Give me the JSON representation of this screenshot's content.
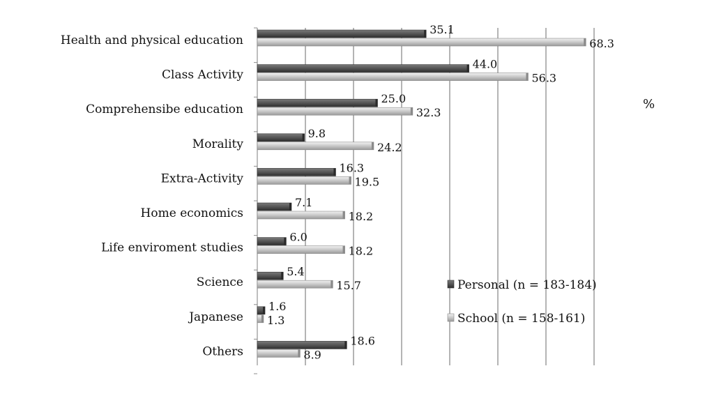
{
  "chart_data": {
    "type": "bar",
    "orientation": "horizontal",
    "unit_label": "%",
    "xlim": [
      0,
      70
    ],
    "grid": true,
    "legend_position": "bottom-right",
    "categories": [
      "Health and physical education",
      "Class Activity",
      "Comprehensibe education",
      "Morality",
      "Extra-Activity",
      "Home economics",
      "Life enviroment studies",
      "Science",
      "Japanese",
      "Others"
    ],
    "series": [
      {
        "name": "Personal (n = 183-184)",
        "color": "#4a4a4a",
        "values": [
          35.1,
          44.0,
          25.0,
          9.8,
          16.3,
          7.1,
          6.0,
          5.4,
          1.6,
          18.6
        ],
        "labels": [
          "35.1",
          "44.0",
          "25.0",
          "9.8",
          "16.3",
          "7.1",
          "6.0",
          "5.4",
          "1.6",
          "18.6"
        ]
      },
      {
        "name": "School (n = 158-161)",
        "color": "#c4c4c4",
        "values": [
          68.3,
          56.3,
          32.3,
          24.2,
          19.5,
          18.2,
          18.2,
          15.7,
          1.3,
          8.9
        ],
        "labels": [
          "68.3",
          "56.3",
          "32.3",
          "24.2",
          "19.5",
          "18.2",
          "18.2",
          "15.7",
          "1.3",
          "8.9"
        ]
      }
    ]
  }
}
